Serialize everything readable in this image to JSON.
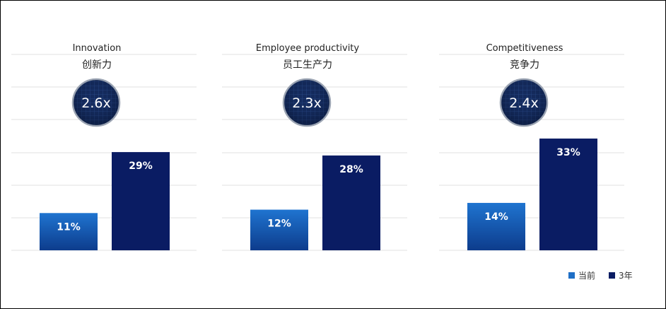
{
  "chart_data": {
    "type": "bar",
    "ylim": [
      0,
      35
    ],
    "gridlines": true,
    "series": [
      {
        "name": "当前",
        "color": "#1f6fc6",
        "values": [
          11,
          12,
          14
        ]
      },
      {
        "name": "3年",
        "color": "#0a1c63",
        "values": [
          29,
          28,
          33
        ]
      }
    ],
    "panels": [
      {
        "title_en": "Innovation",
        "title_zh": "创新力",
        "multiplier": "2.6x",
        "values": [
          11,
          29
        ],
        "labels": [
          "11%",
          "29%"
        ]
      },
      {
        "title_en": "Employee productivity",
        "title_zh": "员工生产力",
        "multiplier": "2.3x",
        "values": [
          12,
          28
        ],
        "labels": [
          "12%",
          "28%"
        ]
      },
      {
        "title_en": "Competitiveness",
        "title_zh": "竞争力",
        "multiplier": "2.4x",
        "values": [
          14,
          33
        ],
        "labels": [
          "14%",
          "33%"
        ]
      }
    ],
    "legend": [
      {
        "label": "当前",
        "color": "#1f6fc6"
      },
      {
        "label": "3年",
        "color": "#0a1c63"
      }
    ],
    "legend_position": "bottom-right"
  }
}
